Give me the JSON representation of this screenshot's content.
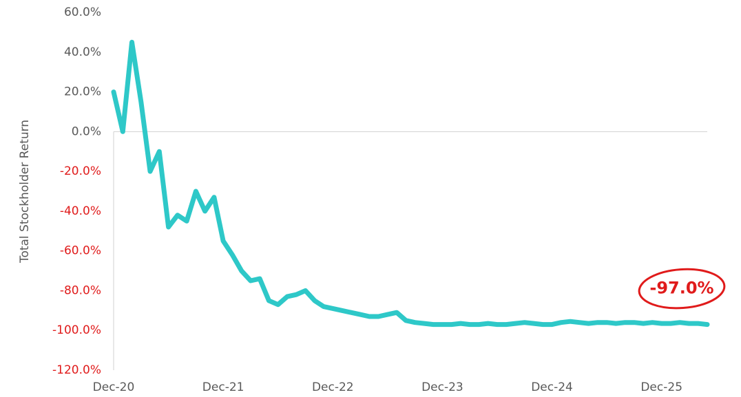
{
  "chart_data": {
    "type": "line",
    "y_axis_label": "Total Stockholder Return",
    "categories": [
      "Dec-20",
      null,
      null,
      null,
      null,
      null,
      null,
      null,
      null,
      null,
      null,
      null,
      "Dec-21",
      null,
      null,
      null,
      null,
      null,
      null,
      null,
      null,
      null,
      null,
      null,
      "Dec-22",
      null,
      null,
      null,
      null,
      null,
      null,
      null,
      null,
      null,
      null,
      null,
      "Dec-23",
      null,
      null,
      null,
      null,
      null,
      null,
      null,
      null,
      null,
      null,
      null,
      "Dec-24",
      null,
      null,
      null,
      null,
      null,
      null,
      null,
      null,
      null,
      null,
      null,
      "Dec-25",
      null,
      null,
      null,
      null,
      null
    ],
    "series": [
      {
        "name": "Total Stockholder Return",
        "color": "#2ec8c8",
        "values": [
          20,
          0,
          45,
          15,
          -20,
          -10,
          -48,
          -42,
          -45,
          -30,
          -40,
          -33,
          -55,
          -62,
          -70,
          -75,
          -74,
          -85,
          -87,
          -83,
          -82,
          -80,
          -85,
          -88,
          -89,
          -90,
          -91,
          -92,
          -93,
          -93,
          -92,
          -91,
          -95,
          -96,
          -96.5,
          -97,
          -97,
          -97,
          -96.5,
          -97,
          -97,
          -96.5,
          -97,
          -97,
          -96.5,
          -96,
          -96.5,
          -97,
          -97,
          -96,
          -95.5,
          -96,
          -96.5,
          -96,
          -96,
          -96.5,
          -96,
          -96,
          -96.5,
          -96,
          -96.5,
          -96.5,
          -96,
          -96.5,
          -96.5,
          -97
        ]
      }
    ],
    "ylim": [
      -120,
      60
    ],
    "yticks": [
      {
        "value": -120,
        "label": "-120.0%"
      },
      {
        "value": -100,
        "label": "-100.0%"
      },
      {
        "value": -80,
        "label": "-80.0%"
      },
      {
        "value": -60,
        "label": "-60.0%"
      },
      {
        "value": -40,
        "label": "-40.0%"
      },
      {
        "value": -20,
        "label": "-20.0%"
      },
      {
        "value": 0,
        "label": "0.0%"
      },
      {
        "value": 20,
        "label": "20.0%"
      },
      {
        "value": 40,
        "label": "40.0%"
      },
      {
        "value": 60,
        "label": "60.0%"
      }
    ],
    "negative_tick_color": "#e01b1b",
    "annotation": {
      "text": "-97.0%",
      "value": -97,
      "color": "#e01b1b"
    }
  }
}
